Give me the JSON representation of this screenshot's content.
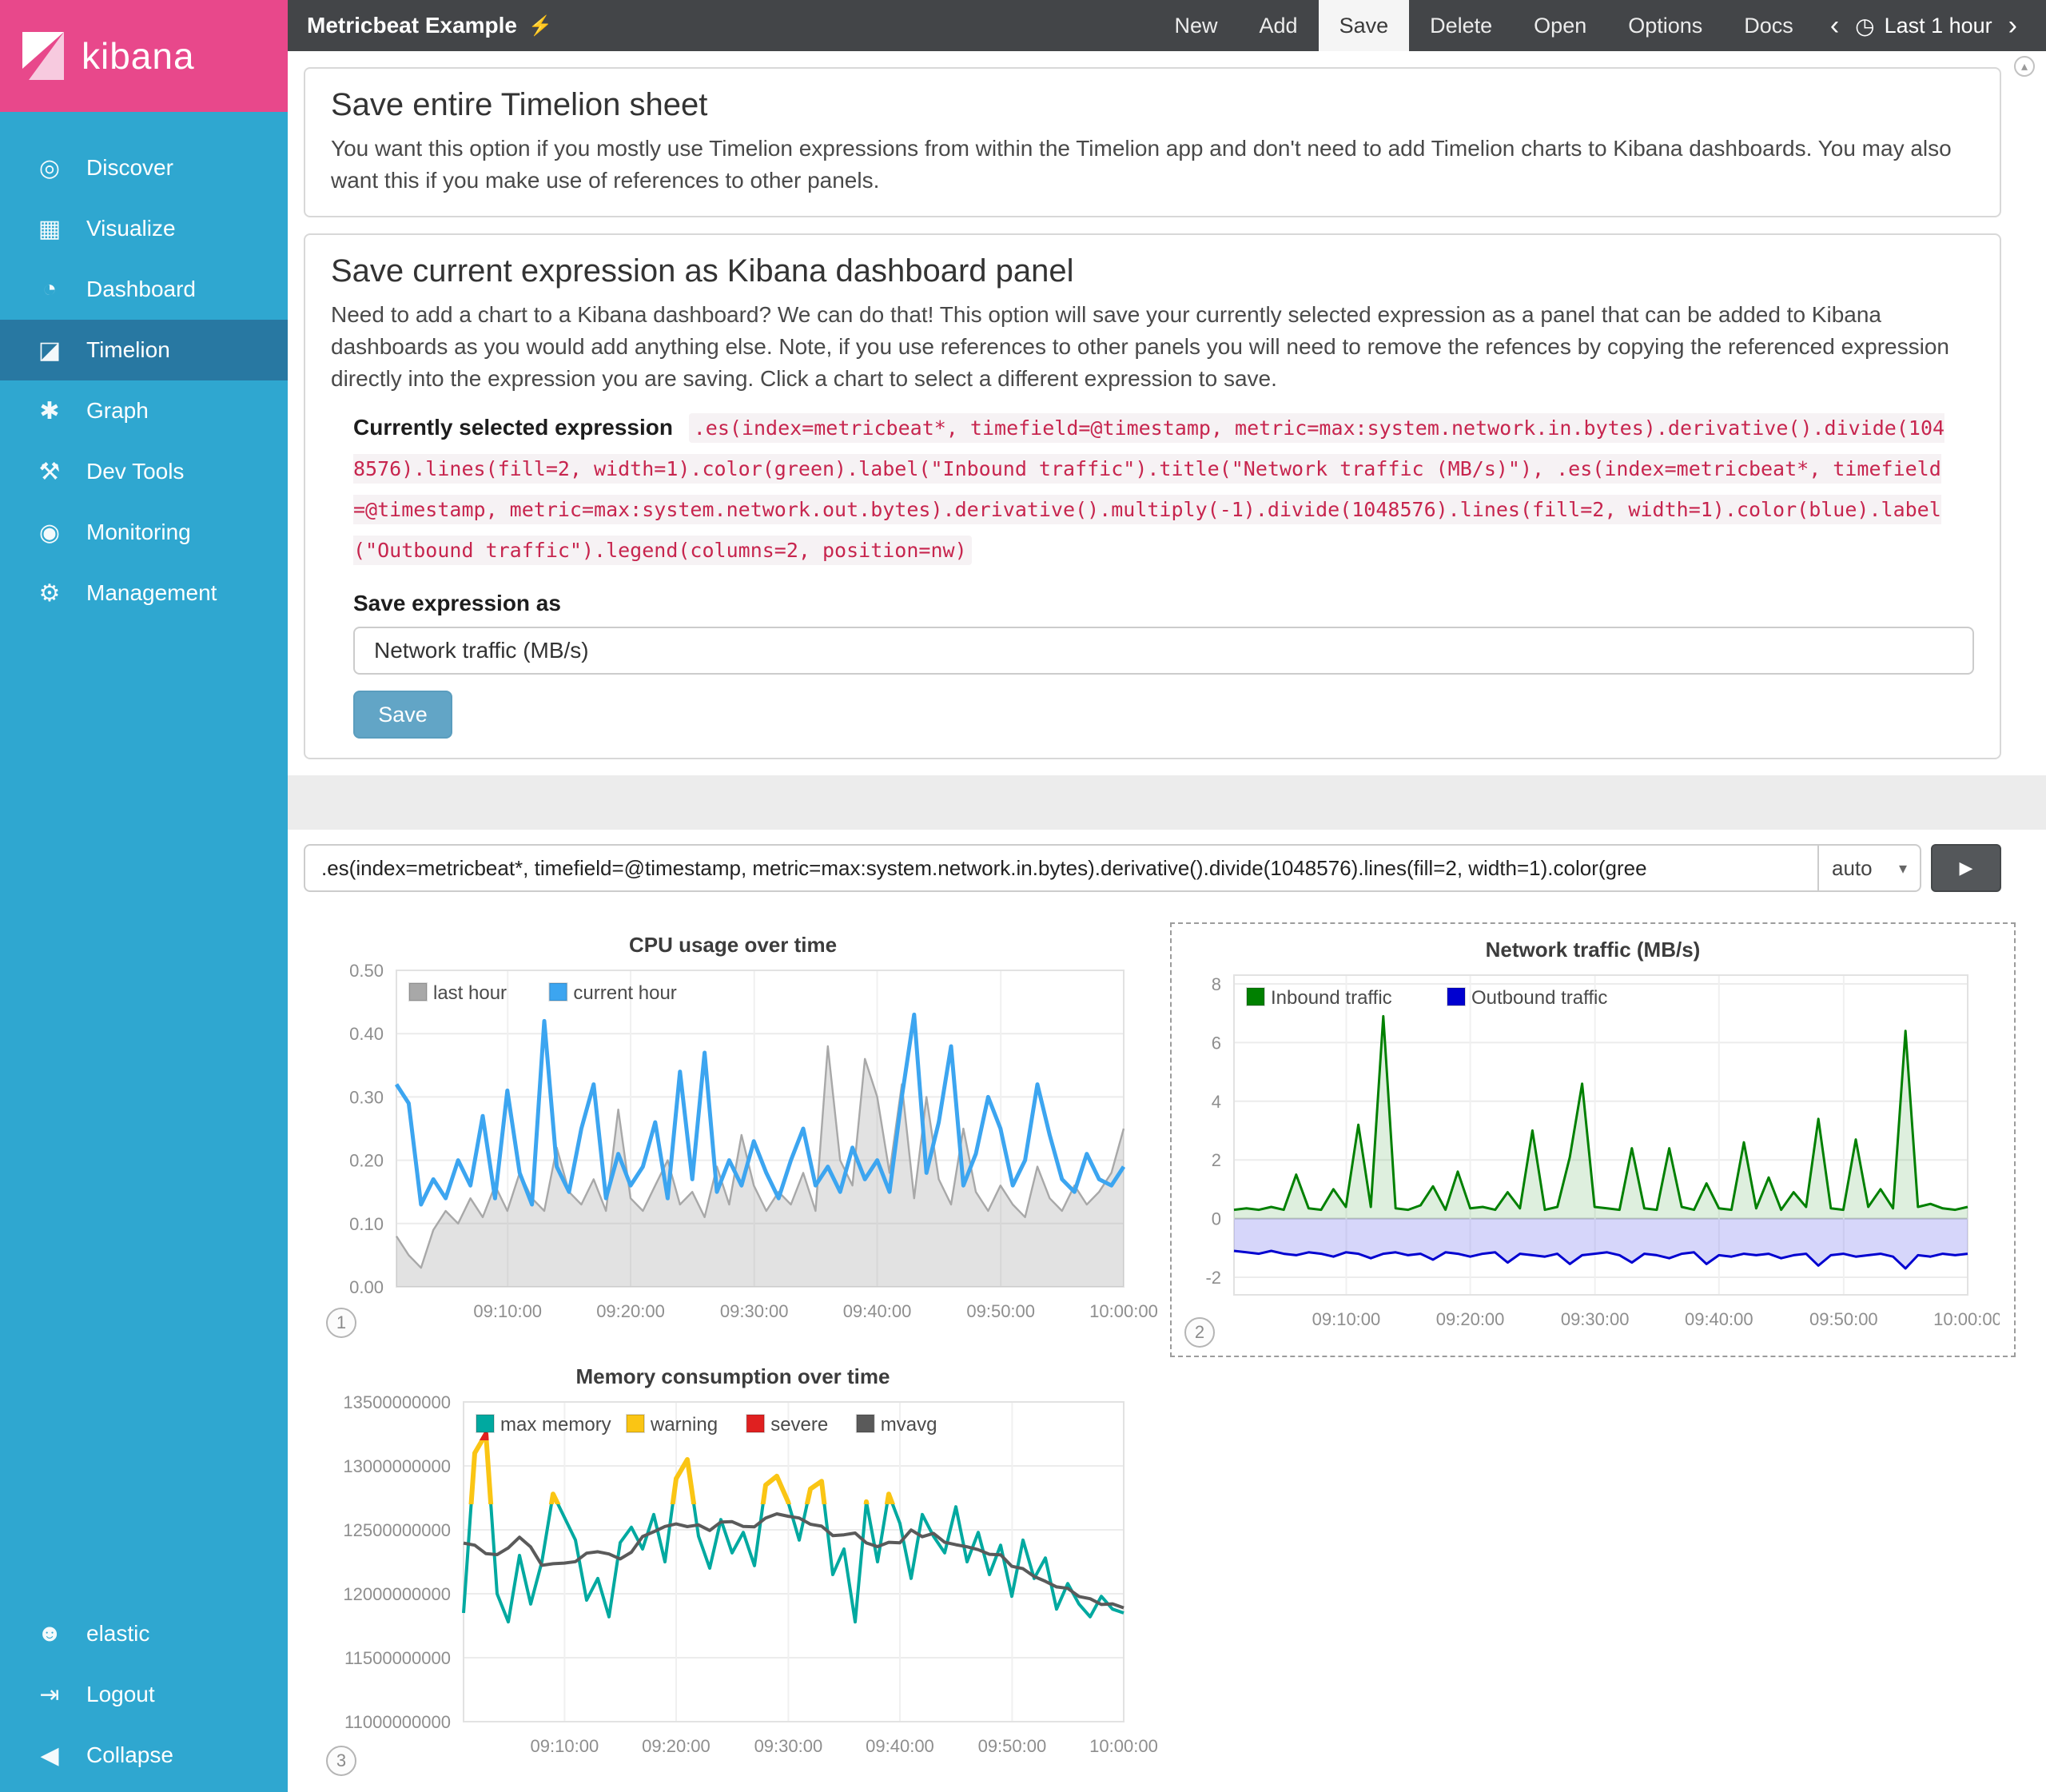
{
  "sidebar": {
    "logo": "kibana",
    "items": [
      {
        "label": "Discover",
        "icon": "discover-icon"
      },
      {
        "label": "Visualize",
        "icon": "visualize-icon"
      },
      {
        "label": "Dashboard",
        "icon": "dashboard-icon"
      },
      {
        "label": "Timelion",
        "icon": "timelion-icon",
        "active": true
      },
      {
        "label": "Graph",
        "icon": "graph-icon"
      },
      {
        "label": "Dev Tools",
        "icon": "devtools-icon"
      },
      {
        "label": "Monitoring",
        "icon": "monitoring-icon"
      },
      {
        "label": "Management",
        "icon": "management-icon"
      }
    ],
    "footer_items": [
      {
        "label": "elastic",
        "icon": "user-icon"
      },
      {
        "label": "Logout",
        "icon": "logout-icon"
      },
      {
        "label": "Collapse",
        "icon": "collapse-icon"
      }
    ]
  },
  "topnav": {
    "title": "Metricbeat Example",
    "title_icon": "lightning-icon",
    "menu": [
      "New",
      "Add",
      "Save",
      "Delete",
      "Open",
      "Options",
      "Docs"
    ],
    "active_menu": "Save",
    "time_label": "Last 1 hour"
  },
  "save_sheet": {
    "title": "Save entire Timelion sheet",
    "description": "You want this option if you mostly use Timelion expressions from within the Timelion app and don't need to add Timelion charts to Kibana dashboards. You may also want this if you make use of references to other panels."
  },
  "save_panel": {
    "title": "Save current expression as Kibana dashboard panel",
    "description": "Need to add a chart to a Kibana dashboard? We can do that! This option will save your currently selected expression as a panel that can be added to Kibana dashboards as you would add anything else. Note, if you use references to other panels you will need to remove the refences by copying the referenced expression directly into the expression you are saving. Click a chart to select a different expression to save.",
    "selected_expression_label": "Currently selected expression",
    "selected_expression": ".es(index=metricbeat*, timefield=@timestamp, metric=max:system.network.in.bytes).derivative().divide(1048576).lines(fill=2, width=1).color(green).label(\"Inbound traffic\").title(\"Network traffic (MB/s)\"), .es(index=metricbeat*, timefield=@timestamp, metric=max:system.network.out.bytes).derivative().multiply(-1).divide(1048576).lines(fill=2, width=1).color(blue).label(\"Outbound traffic\").legend(columns=2, position=nw)",
    "save_as_label": "Save expression as",
    "save_as_value": "Network traffic (MB/s)",
    "save_button": "Save"
  },
  "expression_bar": {
    "value": ".es(index=metricbeat*, timefield=@timestamp, metric=max:system.network.in.bytes).derivative().divide(1048576).lines(fill=2, width=1).color(gree",
    "interval": "auto"
  },
  "chart_data": [
    {
      "id": "cpu",
      "type": "line",
      "title": "CPU usage over time",
      "panel_number": "1",
      "legend_position": "nw",
      "ylim": [
        0,
        0.5
      ],
      "yticks": [
        {
          "v": 0.5,
          "label": "0.50"
        },
        {
          "v": 0.4,
          "label": "0.40"
        },
        {
          "v": 0.3,
          "label": "0.30"
        },
        {
          "v": 0.2,
          "label": "0.20"
        },
        {
          "v": 0.1,
          "label": "0.10"
        },
        {
          "v": 0,
          "label": "0.00"
        }
      ],
      "xticks": [
        {
          "f": 0.153,
          "label": "09:10:00"
        },
        {
          "f": 0.322,
          "label": "09:20:00"
        },
        {
          "f": 0.492,
          "label": "09:30:00"
        },
        {
          "f": 0.661,
          "label": "09:40:00"
        },
        {
          "f": 0.831,
          "label": "09:50:00"
        },
        {
          "f": 1.0,
          "label": "10:00:00"
        }
      ],
      "series": [
        {
          "name": "last hour",
          "color": "#a8a8a8",
          "fill": "rgba(140,140,140,0.25)",
          "width": 1.2,
          "values": [
            0.08,
            0.05,
            0.03,
            0.09,
            0.12,
            0.1,
            0.14,
            0.11,
            0.16,
            0.12,
            0.18,
            0.14,
            0.12,
            0.22,
            0.15,
            0.13,
            0.17,
            0.12,
            0.28,
            0.14,
            0.12,
            0.16,
            0.2,
            0.13,
            0.15,
            0.11,
            0.19,
            0.13,
            0.24,
            0.16,
            0.12,
            0.15,
            0.13,
            0.18,
            0.12,
            0.38,
            0.2,
            0.16,
            0.36,
            0.3,
            0.18,
            0.32,
            0.14,
            0.3,
            0.17,
            0.13,
            0.25,
            0.15,
            0.12,
            0.16,
            0.13,
            0.11,
            0.19,
            0.14,
            0.12,
            0.16,
            0.13,
            0.15,
            0.18,
            0.25
          ]
        },
        {
          "name": "current hour",
          "color": "#3ca5f0",
          "width": 2.5,
          "values": [
            0.32,
            0.29,
            0.13,
            0.17,
            0.14,
            0.2,
            0.16,
            0.27,
            0.14,
            0.31,
            0.18,
            0.13,
            0.42,
            0.19,
            0.15,
            0.25,
            0.32,
            0.14,
            0.21,
            0.16,
            0.19,
            0.26,
            0.14,
            0.34,
            0.17,
            0.37,
            0.15,
            0.2,
            0.16,
            0.23,
            0.18,
            0.14,
            0.2,
            0.25,
            0.16,
            0.19,
            0.15,
            0.22,
            0.17,
            0.2,
            0.15,
            0.3,
            0.43,
            0.18,
            0.26,
            0.38,
            0.16,
            0.21,
            0.3,
            0.25,
            0.16,
            0.2,
            0.32,
            0.24,
            0.17,
            0.15,
            0.21,
            0.17,
            0.16,
            0.19
          ]
        }
      ]
    },
    {
      "id": "network",
      "type": "area",
      "title": "Network traffic (MB/s)",
      "panel_number": "2",
      "selected": true,
      "legend_position": "nw",
      "legend_columns": 2,
      "ylim": [
        -2.6,
        8.3
      ],
      "yticks": [
        {
          "v": 8,
          "label": "8"
        },
        {
          "v": 6,
          "label": "6"
        },
        {
          "v": 4,
          "label": "4"
        },
        {
          "v": 2,
          "label": "2"
        },
        {
          "v": 0,
          "label": "0"
        },
        {
          "v": -2,
          "label": "-2"
        }
      ],
      "xticks": [
        {
          "f": 0.153,
          "label": "09:10:00"
        },
        {
          "f": 0.322,
          "label": "09:20:00"
        },
        {
          "f": 0.492,
          "label": "09:30:00"
        },
        {
          "f": 0.661,
          "label": "09:40:00"
        },
        {
          "f": 0.831,
          "label": "09:50:00"
        },
        {
          "f": 1.0,
          "label": "10:00:00"
        }
      ],
      "series": [
        {
          "name": "Inbound traffic",
          "color": "#008000",
          "fill": "rgba(0,128,0,0.13)",
          "width": 1.5,
          "values": [
            0.3,
            0.35,
            0.3,
            0.4,
            0.3,
            1.5,
            0.35,
            0.3,
            1.0,
            0.4,
            3.2,
            0.4,
            6.9,
            0.35,
            0.3,
            0.45,
            1.1,
            0.3,
            1.6,
            0.35,
            0.4,
            0.3,
            0.9,
            0.35,
            3.0,
            0.3,
            0.4,
            2.1,
            4.6,
            0.4,
            0.35,
            0.3,
            2.4,
            0.35,
            0.3,
            2.4,
            0.4,
            0.3,
            1.2,
            0.35,
            0.3,
            2.6,
            0.35,
            1.4,
            0.3,
            0.9,
            0.4,
            3.4,
            0.35,
            0.3,
            2.7,
            0.4,
            1.0,
            0.35,
            6.4,
            0.4,
            0.5,
            0.35,
            0.3,
            0.4
          ]
        },
        {
          "name": "Outbound traffic",
          "color": "#0000d0",
          "fill": "rgba(90,90,235,0.25)",
          "width": 1.5,
          "values": [
            -1.1,
            -1.15,
            -1.2,
            -1.1,
            -1.2,
            -1.25,
            -1.15,
            -1.2,
            -1.3,
            -1.15,
            -1.2,
            -1.35,
            -1.2,
            -1.15,
            -1.25,
            -1.2,
            -1.4,
            -1.15,
            -1.2,
            -1.3,
            -1.2,
            -1.15,
            -1.5,
            -1.2,
            -1.25,
            -1.3,
            -1.2,
            -1.55,
            -1.25,
            -1.2,
            -1.15,
            -1.25,
            -1.5,
            -1.2,
            -1.25,
            -1.35,
            -1.2,
            -1.15,
            -1.55,
            -1.25,
            -1.3,
            -1.2,
            -1.25,
            -1.2,
            -1.35,
            -1.25,
            -1.2,
            -1.6,
            -1.25,
            -1.2,
            -1.3,
            -1.25,
            -1.2,
            -1.3,
            -1.7,
            -1.25,
            -1.3,
            -1.2,
            -1.25,
            -1.2
          ]
        }
      ]
    },
    {
      "id": "memory",
      "type": "line",
      "title": "Memory consumption over time",
      "panel_number": "3",
      "legend_position": "nw",
      "value_scale": 1000000000,
      "ylim": [
        11,
        13.5
      ],
      "yticks": [
        {
          "v": 13.5,
          "label": "13500000000"
        },
        {
          "v": 13,
          "label": "13000000000"
        },
        {
          "v": 12.5,
          "label": "12500000000"
        },
        {
          "v": 12,
          "label": "12000000000"
        },
        {
          "v": 11.5,
          "label": "11500000000"
        },
        {
          "v": 11,
          "label": "11000000000"
        }
      ],
      "xticks": [
        {
          "f": 0.153,
          "label": "09:10:00"
        },
        {
          "f": 0.322,
          "label": "09:20:00"
        },
        {
          "f": 0.492,
          "label": "09:30:00"
        },
        {
          "f": 0.661,
          "label": "09:40:00"
        },
        {
          "f": 0.831,
          "label": "09:50:00"
        },
        {
          "f": 1.0,
          "label": "10:00:00"
        }
      ],
      "series": [
        {
          "name": "max memory",
          "color": "#00a9a0",
          "width": 2,
          "values": [
            11.85,
            13.1,
            13.25,
            12.0,
            11.78,
            12.3,
            11.92,
            12.25,
            12.78,
            12.6,
            12.42,
            11.95,
            12.12,
            11.82,
            12.4,
            12.52,
            12.35,
            12.62,
            12.25,
            12.9,
            13.05,
            12.45,
            12.2,
            12.58,
            12.32,
            12.48,
            12.22,
            12.85,
            12.92,
            12.72,
            12.42,
            12.82,
            12.88,
            12.15,
            12.35,
            11.78,
            12.72,
            12.25,
            12.78,
            12.55,
            12.12,
            12.62,
            12.45,
            12.32,
            12.68,
            12.25,
            12.48,
            12.15,
            12.38,
            11.98,
            12.42,
            12.12,
            12.28,
            11.88,
            12.08,
            11.92,
            11.82,
            11.98,
            11.88,
            11.85
          ]
        },
        {
          "name": "warning",
          "color": "#fac514",
          "width": 3,
          "threshold": 12.7
        },
        {
          "name": "severe",
          "color": "#e02020",
          "width": 3,
          "threshold": 13.2
        },
        {
          "name": "mvavg",
          "color": "#5a5a5a",
          "width": 2,
          "window": 9
        }
      ]
    }
  ]
}
